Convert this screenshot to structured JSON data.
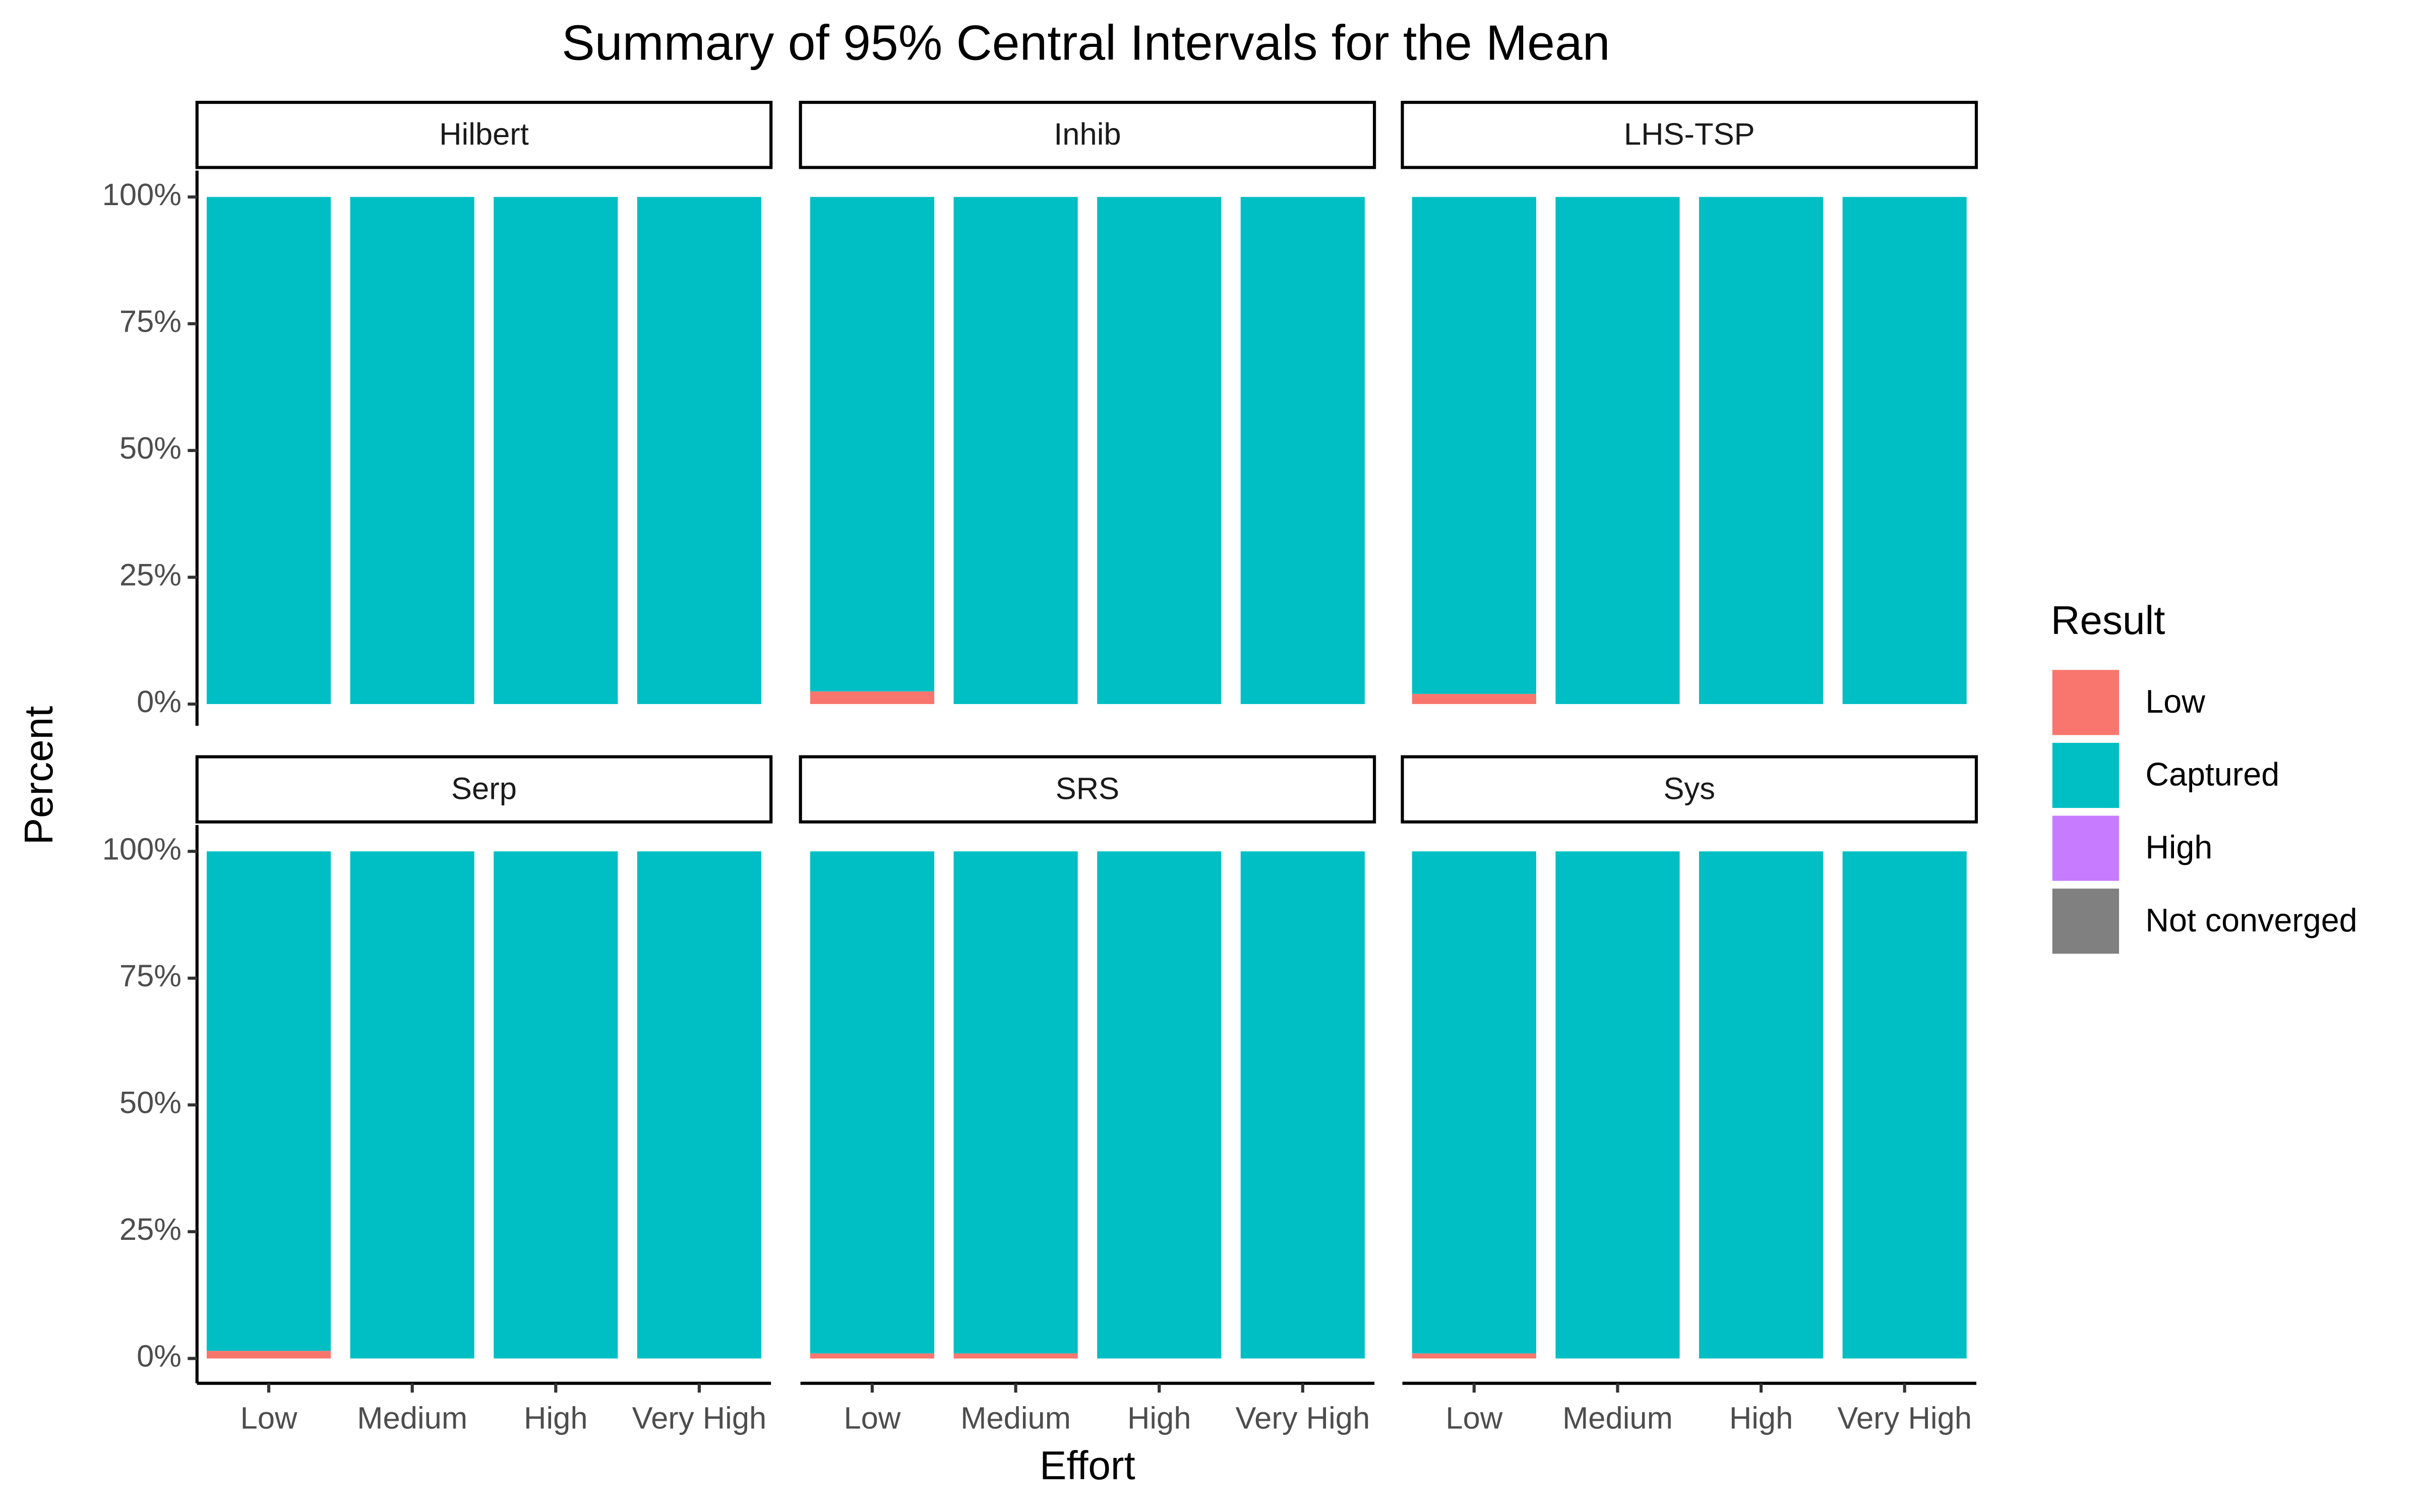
{
  "chart_data": {
    "type": "stacked_bar",
    "title": "Summary of 95% Central Intervals for the Mean",
    "x_label": "Effort",
    "y_label": "Percent",
    "legend_title": "Result",
    "categories": [
      "Low",
      "Medium",
      "High",
      "Very High"
    ],
    "ylim": [
      0,
      100
    ],
    "yticks": [
      {
        "value": 0,
        "label": "0%"
      },
      {
        "value": 25,
        "label": "25%"
      },
      {
        "value": 50,
        "label": "50%"
      },
      {
        "value": 75,
        "label": "75%"
      },
      {
        "value": 100,
        "label": "100%"
      }
    ],
    "series": [
      {
        "name": "Low",
        "color": "#f8766d"
      },
      {
        "name": "Captured",
        "color": "#00bfc4"
      },
      {
        "name": "High",
        "color": "#c77cff"
      },
      {
        "name": "Not converged",
        "color": "#808080"
      }
    ],
    "facets": [
      {
        "title": "Hilbert",
        "values": [
          [
            0,
            0,
            0,
            0
          ],
          [
            100,
            100,
            100,
            100
          ],
          [
            0,
            0,
            0,
            0
          ],
          [
            0,
            0,
            0,
            0
          ]
        ]
      },
      {
        "title": "Inhib",
        "values": [
          [
            2.5,
            0,
            0,
            0
          ],
          [
            97.5,
            100,
            100,
            100
          ],
          [
            0,
            0,
            0,
            0
          ],
          [
            0,
            0,
            0,
            0
          ]
        ]
      },
      {
        "title": "LHS-TSP",
        "values": [
          [
            2,
            0,
            0,
            0
          ],
          [
            98,
            100,
            100,
            100
          ],
          [
            0,
            0,
            0,
            0
          ],
          [
            0,
            0,
            0,
            0
          ]
        ]
      },
      {
        "title": "Serp",
        "values": [
          [
            1.5,
            0,
            0,
            0
          ],
          [
            98.5,
            100,
            100,
            100
          ],
          [
            0,
            0,
            0,
            0
          ],
          [
            0,
            0,
            0,
            0
          ]
        ]
      },
      {
        "title": "SRS",
        "values": [
          [
            1,
            1,
            0,
            0
          ],
          [
            99,
            99,
            100,
            100
          ],
          [
            0,
            0,
            0,
            0
          ],
          [
            0,
            0,
            0,
            0
          ]
        ]
      },
      {
        "title": "Sys",
        "values": [
          [
            1,
            0,
            0,
            0
          ],
          [
            99,
            100,
            100,
            100
          ],
          [
            0,
            0,
            0,
            0
          ],
          [
            0,
            0,
            0,
            0
          ]
        ]
      }
    ]
  }
}
